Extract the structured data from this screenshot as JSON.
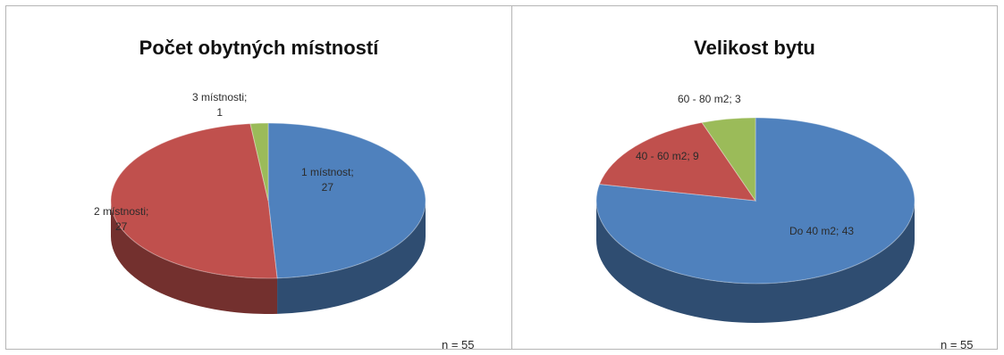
{
  "chart_data": [
    {
      "type": "pie",
      "title": "Počet obytných místností",
      "slices": [
        {
          "name": "1 místnost",
          "value": 27,
          "label": "1 místnost;\n27",
          "color": "#4f81bd"
        },
        {
          "name": "2 místnosti",
          "value": 27,
          "label": "2 místnosti;\n27",
          "color": "#c0504d"
        },
        {
          "name": "3 místnosti",
          "value": 1,
          "label": "3 místnosti;\n1",
          "color": "#9bbb59"
        }
      ],
      "note": "n = 55"
    },
    {
      "type": "pie",
      "title": "Velikost bytu",
      "slices": [
        {
          "name": "Do 40 m2",
          "value": 43,
          "label": "Do 40 m2; 43",
          "color": "#4f81bd"
        },
        {
          "name": "40 - 60 m2",
          "value": 9,
          "label": "40 - 60 m2; 9",
          "color": "#c0504d"
        },
        {
          "name": "60 - 80 m2",
          "value": 3,
          "label": "60 - 80 m2; 3",
          "color": "#9bbb59"
        }
      ],
      "note": "n = 55"
    }
  ]
}
